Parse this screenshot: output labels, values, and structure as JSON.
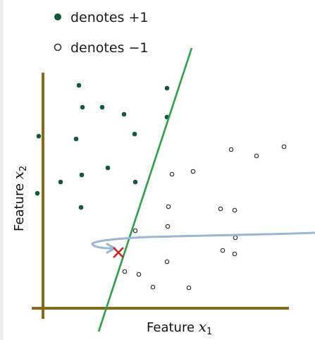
{
  "legend": {
    "pos_label": "denotes +1",
    "neg_label": "denotes −1"
  },
  "axes": {
    "x_label_text": "Feature ",
    "x_label_var": "x",
    "x_label_sub": "1",
    "y_label_text": "Feature ",
    "y_label_var": "x",
    "y_label_sub": "2"
  },
  "colors": {
    "axis": "#8b6914",
    "positive": "#0f5a36",
    "negative_stroke": "#333333",
    "boundary": "#2aa24a",
    "arrow": "#9ab6d2",
    "misclassified": "#d62020"
  },
  "markers": {
    "misclassified_icon": "x-mark-icon"
  }
}
